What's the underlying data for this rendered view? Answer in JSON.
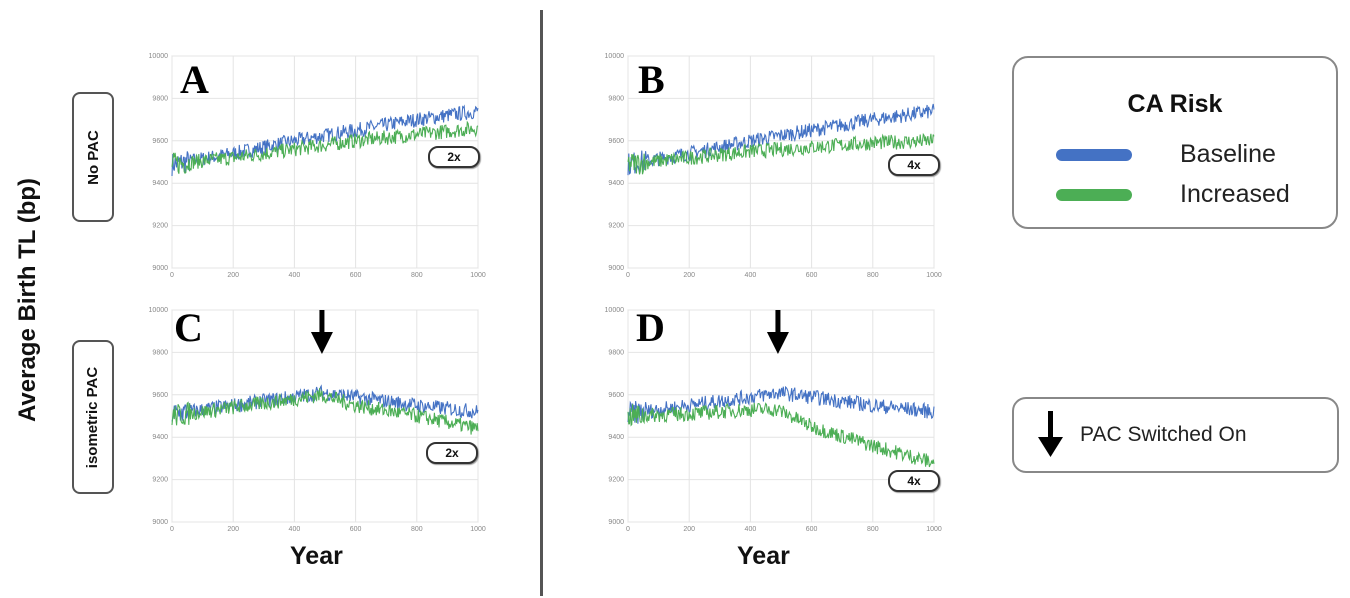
{
  "figure": {
    "y_axis_label": "Average Birth TL (bp)",
    "x_axis_label": "Year",
    "row_labels": [
      "No PAC",
      "isometric PAC"
    ],
    "legend": {
      "title": "CA Risk",
      "items": [
        {
          "label": "Baseline",
          "color": "#4472c4"
        },
        {
          "label": "Increased",
          "color": "#4cae55"
        }
      ]
    },
    "pac_legend": {
      "icon": "down-arrow-icon",
      "label": "PAC Switched On"
    }
  },
  "chart_data": [
    {
      "type": "line",
      "panel": "A",
      "row": "No PAC",
      "multiplier": "2x",
      "xlabel": "Year",
      "ylabel": "Average Birth TL (bp)",
      "xlim": [
        0,
        1000
      ],
      "ylim": [
        9000,
        10000
      ],
      "xticks": [
        0,
        200,
        400,
        600,
        800,
        1000
      ],
      "yticks": [
        9000,
        9200,
        9400,
        9600,
        9800,
        10000
      ],
      "grid": true,
      "pac_switch_year": null,
      "series": [
        {
          "name": "Baseline",
          "color": "#4472c4",
          "x": [
            0,
            200,
            400,
            600,
            800,
            1000
          ],
          "values": [
            9490,
            9540,
            9600,
            9650,
            9700,
            9740
          ]
        },
        {
          "name": "Increased",
          "color": "#4cae55",
          "x": [
            0,
            200,
            400,
            600,
            800,
            1000
          ],
          "values": [
            9490,
            9520,
            9560,
            9600,
            9630,
            9660
          ]
        }
      ]
    },
    {
      "type": "line",
      "panel": "B",
      "row": "No PAC",
      "multiplier": "4x",
      "xlabel": "Year",
      "ylabel": "Average Birth TL (bp)",
      "xlim": [
        0,
        1000
      ],
      "ylim": [
        9000,
        10000
      ],
      "xticks": [
        0,
        200,
        400,
        600,
        800,
        1000
      ],
      "yticks": [
        9000,
        9200,
        9400,
        9600,
        9800,
        10000
      ],
      "grid": true,
      "pac_switch_year": null,
      "series": [
        {
          "name": "Baseline",
          "color": "#4472c4",
          "x": [
            0,
            200,
            400,
            600,
            800,
            1000
          ],
          "values": [
            9490,
            9540,
            9600,
            9650,
            9700,
            9740
          ]
        },
        {
          "name": "Increased",
          "color": "#4cae55",
          "x": [
            0,
            200,
            400,
            600,
            800,
            1000
          ],
          "values": [
            9490,
            9520,
            9550,
            9570,
            9590,
            9600
          ]
        }
      ]
    },
    {
      "type": "line",
      "panel": "C",
      "row": "isometric PAC",
      "multiplier": "2x",
      "xlabel": "Year",
      "ylabel": "Average Birth TL (bp)",
      "xlim": [
        0,
        1000
      ],
      "ylim": [
        9000,
        10000
      ],
      "xticks": [
        0,
        200,
        400,
        600,
        800,
        1000
      ],
      "yticks": [
        9000,
        9200,
        9400,
        9600,
        9800,
        10000
      ],
      "grid": true,
      "pac_switch_year": 490,
      "series": [
        {
          "name": "Baseline",
          "color": "#4472c4",
          "x": [
            0,
            200,
            400,
            490,
            600,
            800,
            1000
          ],
          "values": [
            9510,
            9550,
            9590,
            9610,
            9590,
            9550,
            9520
          ]
        },
        {
          "name": "Increased",
          "color": "#4cae55",
          "x": [
            0,
            200,
            400,
            490,
            600,
            800,
            1000
          ],
          "values": [
            9500,
            9540,
            9580,
            9600,
            9550,
            9500,
            9440
          ]
        }
      ]
    },
    {
      "type": "line",
      "panel": "D",
      "row": "isometric PAC",
      "multiplier": "4x",
      "xlabel": "Year",
      "ylabel": "Average Birth TL (bp)",
      "xlim": [
        0,
        1000
      ],
      "ylim": [
        9000,
        10000
      ],
      "xticks": [
        0,
        200,
        400,
        600,
        800,
        1000
      ],
      "yticks": [
        9000,
        9200,
        9400,
        9600,
        9800,
        10000
      ],
      "grid": true,
      "pac_switch_year": 490,
      "series": [
        {
          "name": "Baseline",
          "color": "#4472c4",
          "x": [
            0,
            200,
            400,
            490,
            600,
            800,
            1000
          ],
          "values": [
            9510,
            9550,
            9590,
            9610,
            9590,
            9550,
            9520
          ]
        },
        {
          "name": "Increased",
          "color": "#4cae55",
          "x": [
            0,
            200,
            400,
            490,
            600,
            800,
            1000
          ],
          "values": [
            9500,
            9510,
            9530,
            9530,
            9450,
            9360,
            9280
          ]
        }
      ]
    }
  ]
}
